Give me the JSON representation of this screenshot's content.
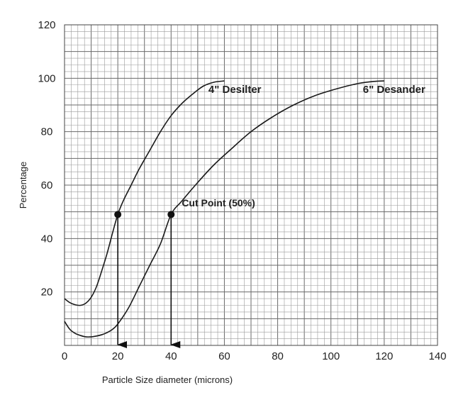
{
  "chart_data": {
    "type": "line",
    "title": "",
    "xlabel": "Particle Size diameter (microns)",
    "ylabel": "Percentage",
    "xlim": [
      0,
      140
    ],
    "ylim": [
      0,
      120
    ],
    "x_ticks": [
      0,
      20,
      40,
      60,
      80,
      100,
      120,
      140
    ],
    "y_ticks": [
      20,
      40,
      60,
      80,
      100,
      120
    ],
    "grid": true,
    "series": [
      {
        "name": "4\" Desilter",
        "x": [
          0,
          2,
          4,
          6,
          8,
          10,
          12,
          14,
          16,
          18,
          20,
          22,
          25,
          28,
          32,
          36,
          40,
          44,
          48,
          52,
          56,
          60
        ],
        "y": [
          17.5,
          16,
          15.2,
          15,
          15.8,
          18,
          22,
          28,
          34.5,
          42,
          49,
          54,
          60,
          66,
          73,
          80,
          86,
          90.5,
          94,
          97,
          98.5,
          99
        ]
      },
      {
        "name": "6\" Desander",
        "x": [
          0,
          2,
          4,
          6,
          8,
          10,
          12,
          14,
          16,
          18,
          20,
          24,
          28,
          32,
          36,
          40,
          44,
          50,
          56,
          62,
          70,
          78,
          86,
          94,
          102,
          110,
          116,
          120
        ],
        "y": [
          9,
          6,
          4.5,
          3.7,
          3.2,
          3.2,
          3.5,
          4,
          4.8,
          6,
          8,
          14,
          22,
          30,
          38,
          49,
          54,
          61,
          67.5,
          73,
          80,
          85.5,
          90,
          93.5,
          96,
          98,
          98.8,
          99
        ]
      }
    ],
    "annotations": [
      {
        "label": "Cut Point (50%)",
        "x": 40,
        "y": 49
      }
    ],
    "cut_points": [
      {
        "series": "4\" Desilter",
        "x": 20,
        "y": 49
      },
      {
        "series": "6\" Desander",
        "x": 40,
        "y": 49
      }
    ]
  }
}
